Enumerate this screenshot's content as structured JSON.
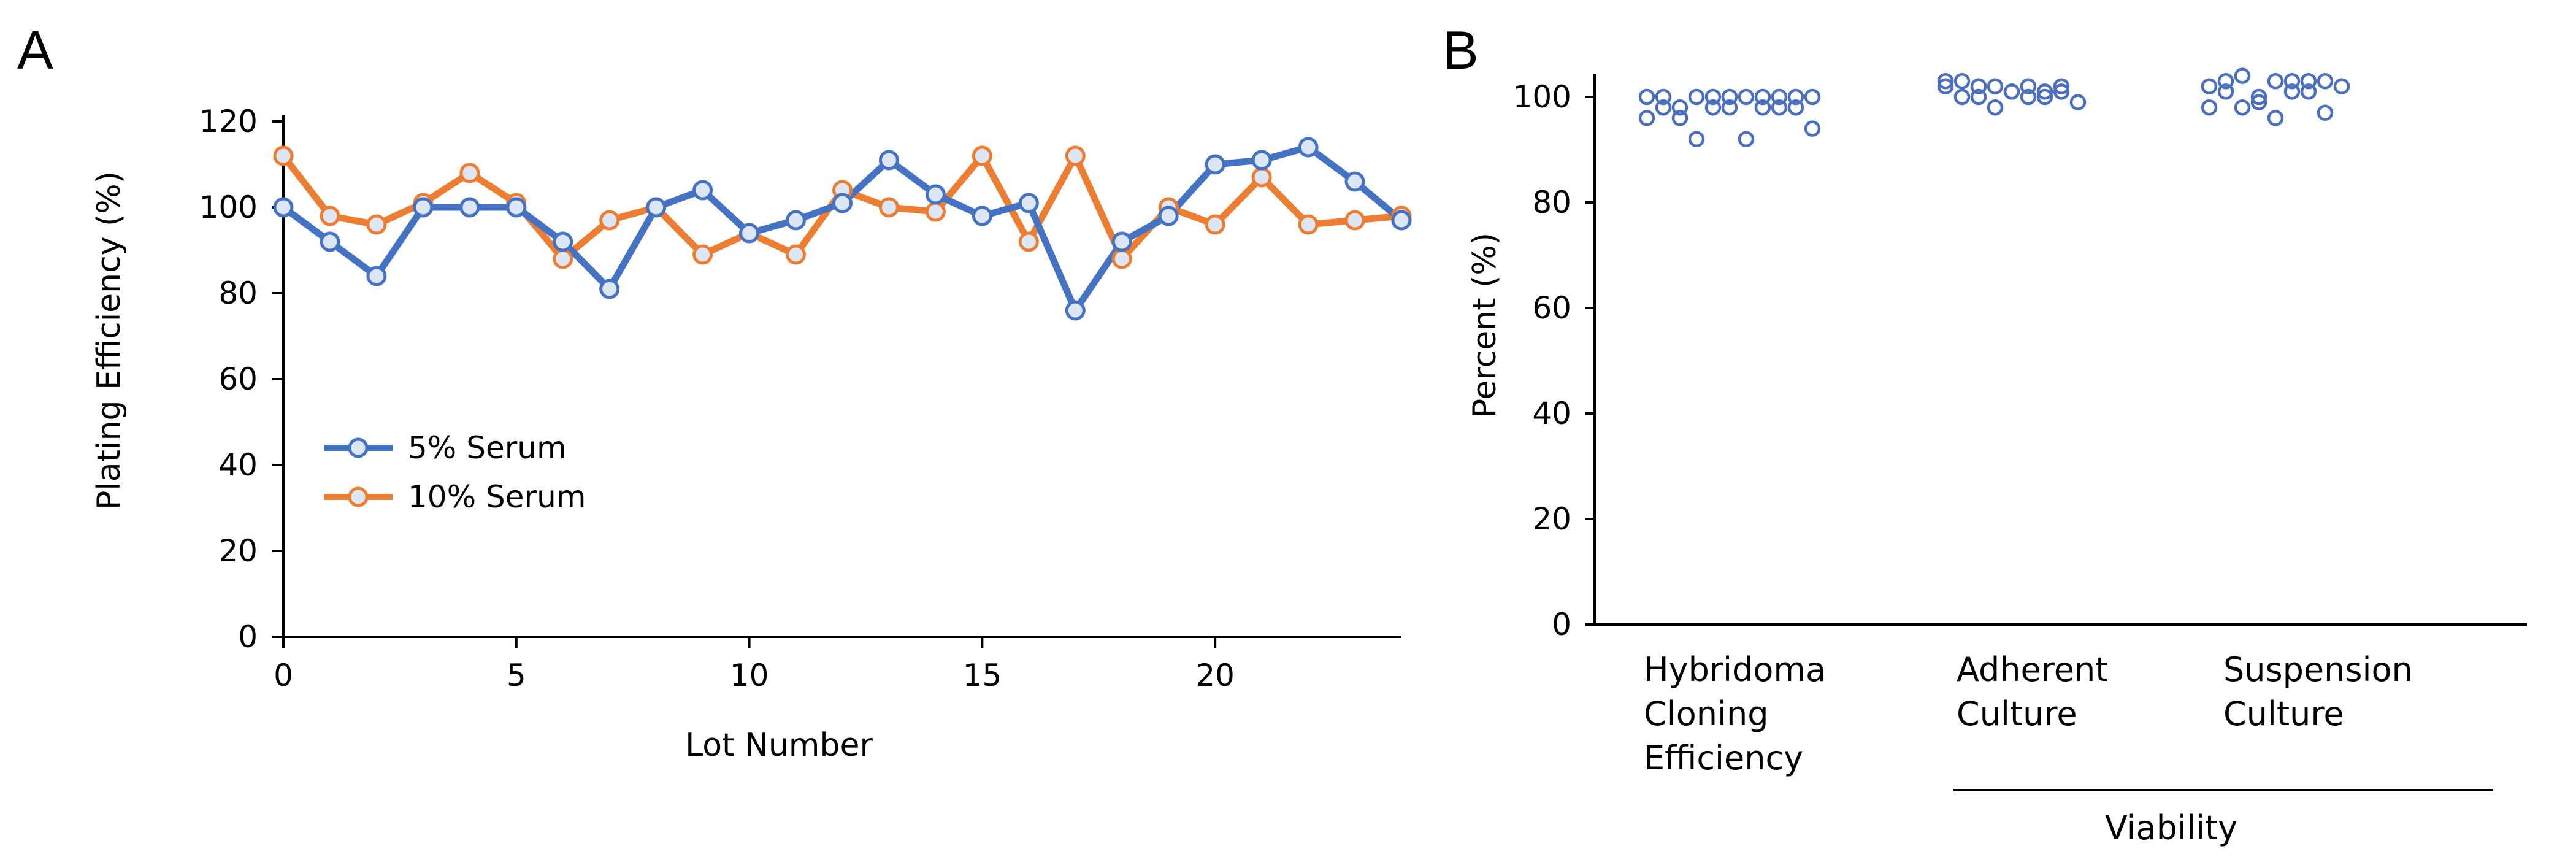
{
  "panels": {
    "a_label": "A",
    "b_label": "B"
  },
  "colors": {
    "five_pct": "#4472C4",
    "ten_pct": "#ED7D31",
    "marker_fill": "#DCE6F5",
    "scatter": "#4A6FBF"
  },
  "chart_data": [
    {
      "type": "line",
      "title": "",
      "xlabel": "Lot Number",
      "ylabel": "Plating Efficiency (%)",
      "xlim": [
        0,
        24
      ],
      "ylim": [
        0,
        120
      ],
      "xticks": [
        0,
        5,
        10,
        15,
        20
      ],
      "yticks": [
        0,
        20,
        40,
        60,
        80,
        100,
        120
      ],
      "x": [
        0,
        1,
        2,
        3,
        4,
        5,
        6,
        7,
        8,
        9,
        10,
        11,
        12,
        13,
        14,
        15,
        16,
        17,
        18,
        19,
        20,
        21,
        22,
        23,
        24
      ],
      "series": [
        {
          "name": "5% Serum",
          "color": "#4472C4",
          "values": [
            100,
            92,
            84,
            100,
            100,
            100,
            92,
            81,
            100,
            104,
            94,
            97,
            101,
            111,
            103,
            98,
            101,
            76,
            92,
            98,
            110,
            111,
            114,
            106,
            97
          ]
        },
        {
          "name": "10% Serum",
          "color": "#ED7D31",
          "values": [
            112,
            98,
            96,
            101,
            108,
            101,
            88,
            97,
            100,
            89,
            94,
            89,
            104,
            100,
            99,
            112,
            92,
            112,
            88,
            100,
            96,
            107,
            96,
            97,
            98
          ]
        }
      ],
      "legend": "center-left"
    },
    {
      "type": "scatter",
      "title": "",
      "xlabel": "",
      "ylabel": "Percent (%)",
      "ylim": [
        0,
        100
      ],
      "yticks": [
        0,
        20,
        40,
        60,
        80,
        100
      ],
      "groups": [
        {
          "label_lines": [
            "Hybridoma",
            "Cloning",
            "Efficiency"
          ],
          "values": [
            100,
            98,
            96,
            92,
            100,
            98,
            100,
            98,
            100,
            98,
            100,
            96,
            100,
            98,
            100,
            98,
            100,
            92,
            100,
            98,
            100,
            94
          ]
        },
        {
          "label_lines": [
            "Adherent",
            "Culture"
          ],
          "values": [
            103,
            100,
            102,
            98,
            101,
            102,
            100,
            101,
            99,
            102,
            103,
            100,
            102,
            101,
            100,
            101,
            102
          ]
        },
        {
          "label_lines": [
            "Suspension",
            "Culture"
          ],
          "values": [
            102,
            103,
            104,
            100,
            103,
            101,
            103,
            97,
            102,
            98,
            101,
            98,
            99,
            96,
            103,
            101,
            103
          ]
        }
      ],
      "bracket_label": "Viability"
    }
  ]
}
